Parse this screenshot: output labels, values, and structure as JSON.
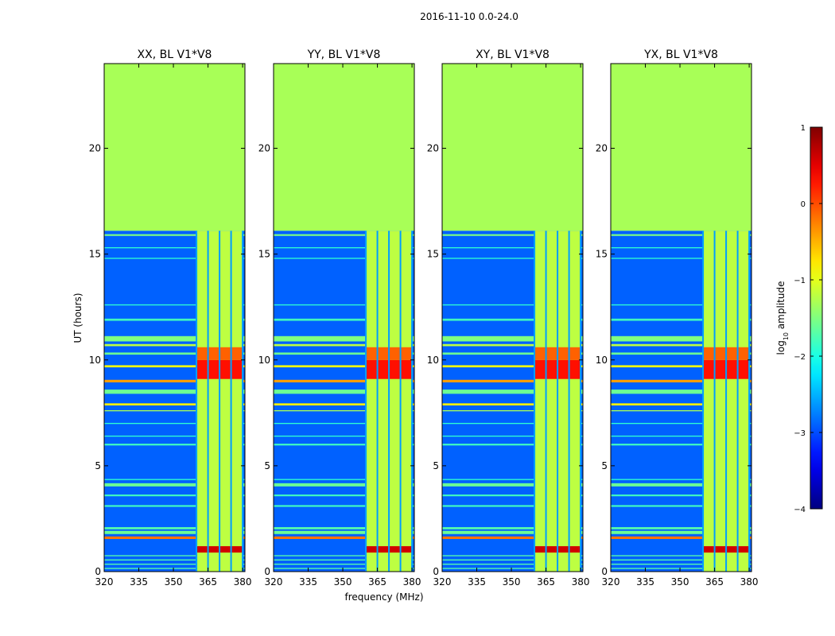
{
  "suptitle": "2016-11-10 0.0-24.0",
  "chart_data": {
    "type": "heatmap",
    "title": "2016-11-10 0.0-24.0",
    "xlabel": "frequency (MHz)",
    "ylabel": "UT (hours)",
    "xlim": [
      320,
      381
    ],
    "ylim": [
      0,
      24
    ],
    "xticks": [
      320,
      335,
      350,
      365,
      380
    ],
    "yticks": [
      0,
      5,
      10,
      15,
      20
    ],
    "colorbar": {
      "label": "log10 amplitude",
      "label_prefix": "log",
      "label_sub": "10",
      "label_suffix": " amplitude",
      "range": [
        -4,
        1
      ],
      "ticks": [
        1,
        0,
        -1,
        -2,
        -3,
        -4
      ],
      "tick_labels": [
        "1",
        "0",
        "−1",
        "−2",
        "−3",
        "−4"
      ],
      "colormap": "jet"
    },
    "data_end_hour": 16.1,
    "fill_value_above_data": -1.3,
    "background_level": -2.9,
    "rfi_band_mhz": [
      360,
      380
    ],
    "rfi_subband_edges_mhz": [
      360,
      365,
      370,
      375,
      380
    ],
    "rfi_band_level": -1.2,
    "strong_hours": [
      {
        "start": 0.9,
        "end": 1.2,
        "level": 0.6
      },
      {
        "start": 9.1,
        "end": 10.0,
        "level": 0.3
      },
      {
        "start": 10.0,
        "end": 10.6,
        "level": -0.1
      }
    ],
    "horizontal_stripes": [
      {
        "hour": 0.15,
        "width": 0.05,
        "level": -1.7
      },
      {
        "hour": 0.35,
        "width": 0.05,
        "level": -1.7
      },
      {
        "hour": 0.55,
        "width": 0.05,
        "level": -1.7
      },
      {
        "hour": 0.75,
        "width": 0.05,
        "level": -1.7
      },
      {
        "hour": 1.6,
        "width": 0.12,
        "level": -0.2
      },
      {
        "hour": 1.85,
        "width": 0.15,
        "level": -1.6
      },
      {
        "hour": 2.05,
        "width": 0.1,
        "level": -1.7
      },
      {
        "hour": 3.1,
        "width": 0.08,
        "level": -1.8
      },
      {
        "hour": 3.6,
        "width": 0.08,
        "level": -1.8
      },
      {
        "hour": 4.1,
        "width": 0.15,
        "level": -1.6
      },
      {
        "hour": 4.35,
        "width": 0.05,
        "level": -1.9
      },
      {
        "hour": 6.0,
        "width": 0.08,
        "level": -1.8
      },
      {
        "hour": 6.4,
        "width": 0.05,
        "level": -1.9
      },
      {
        "hour": 7.0,
        "width": 0.05,
        "level": -1.9
      },
      {
        "hour": 7.6,
        "width": 0.05,
        "level": -1.3
      },
      {
        "hour": 7.9,
        "width": 0.1,
        "level": -0.8
      },
      {
        "hour": 8.5,
        "width": 0.2,
        "level": -1.6
      },
      {
        "hour": 9.0,
        "width": 0.12,
        "level": -0.4
      },
      {
        "hour": 9.7,
        "width": 0.1,
        "level": -0.9
      },
      {
        "hour": 10.3,
        "width": 0.1,
        "level": -1.6
      },
      {
        "hour": 10.7,
        "width": 0.1,
        "level": -1.2
      },
      {
        "hour": 11.0,
        "width": 0.25,
        "level": -1.5
      },
      {
        "hour": 11.9,
        "width": 0.1,
        "level": -1.8
      },
      {
        "hour": 12.6,
        "width": 0.05,
        "level": -1.9
      },
      {
        "hour": 14.8,
        "width": 0.05,
        "level": -1.9
      },
      {
        "hour": 15.3,
        "width": 0.05,
        "level": -1.9
      },
      {
        "hour": 15.9,
        "width": 0.08,
        "level": -1.5
      }
    ],
    "panels": [
      {
        "title": "XX, BL V1*V8",
        "polarization": "XX",
        "baseline": "V1*V8"
      },
      {
        "title": "YY, BL V1*V8",
        "polarization": "YY",
        "baseline": "V1*V8"
      },
      {
        "title": "XY, BL V1*V8",
        "polarization": "XY",
        "baseline": "V1*V8"
      },
      {
        "title": "YX, BL V1*V8",
        "polarization": "YX",
        "baseline": "V1*V8"
      }
    ]
  }
}
